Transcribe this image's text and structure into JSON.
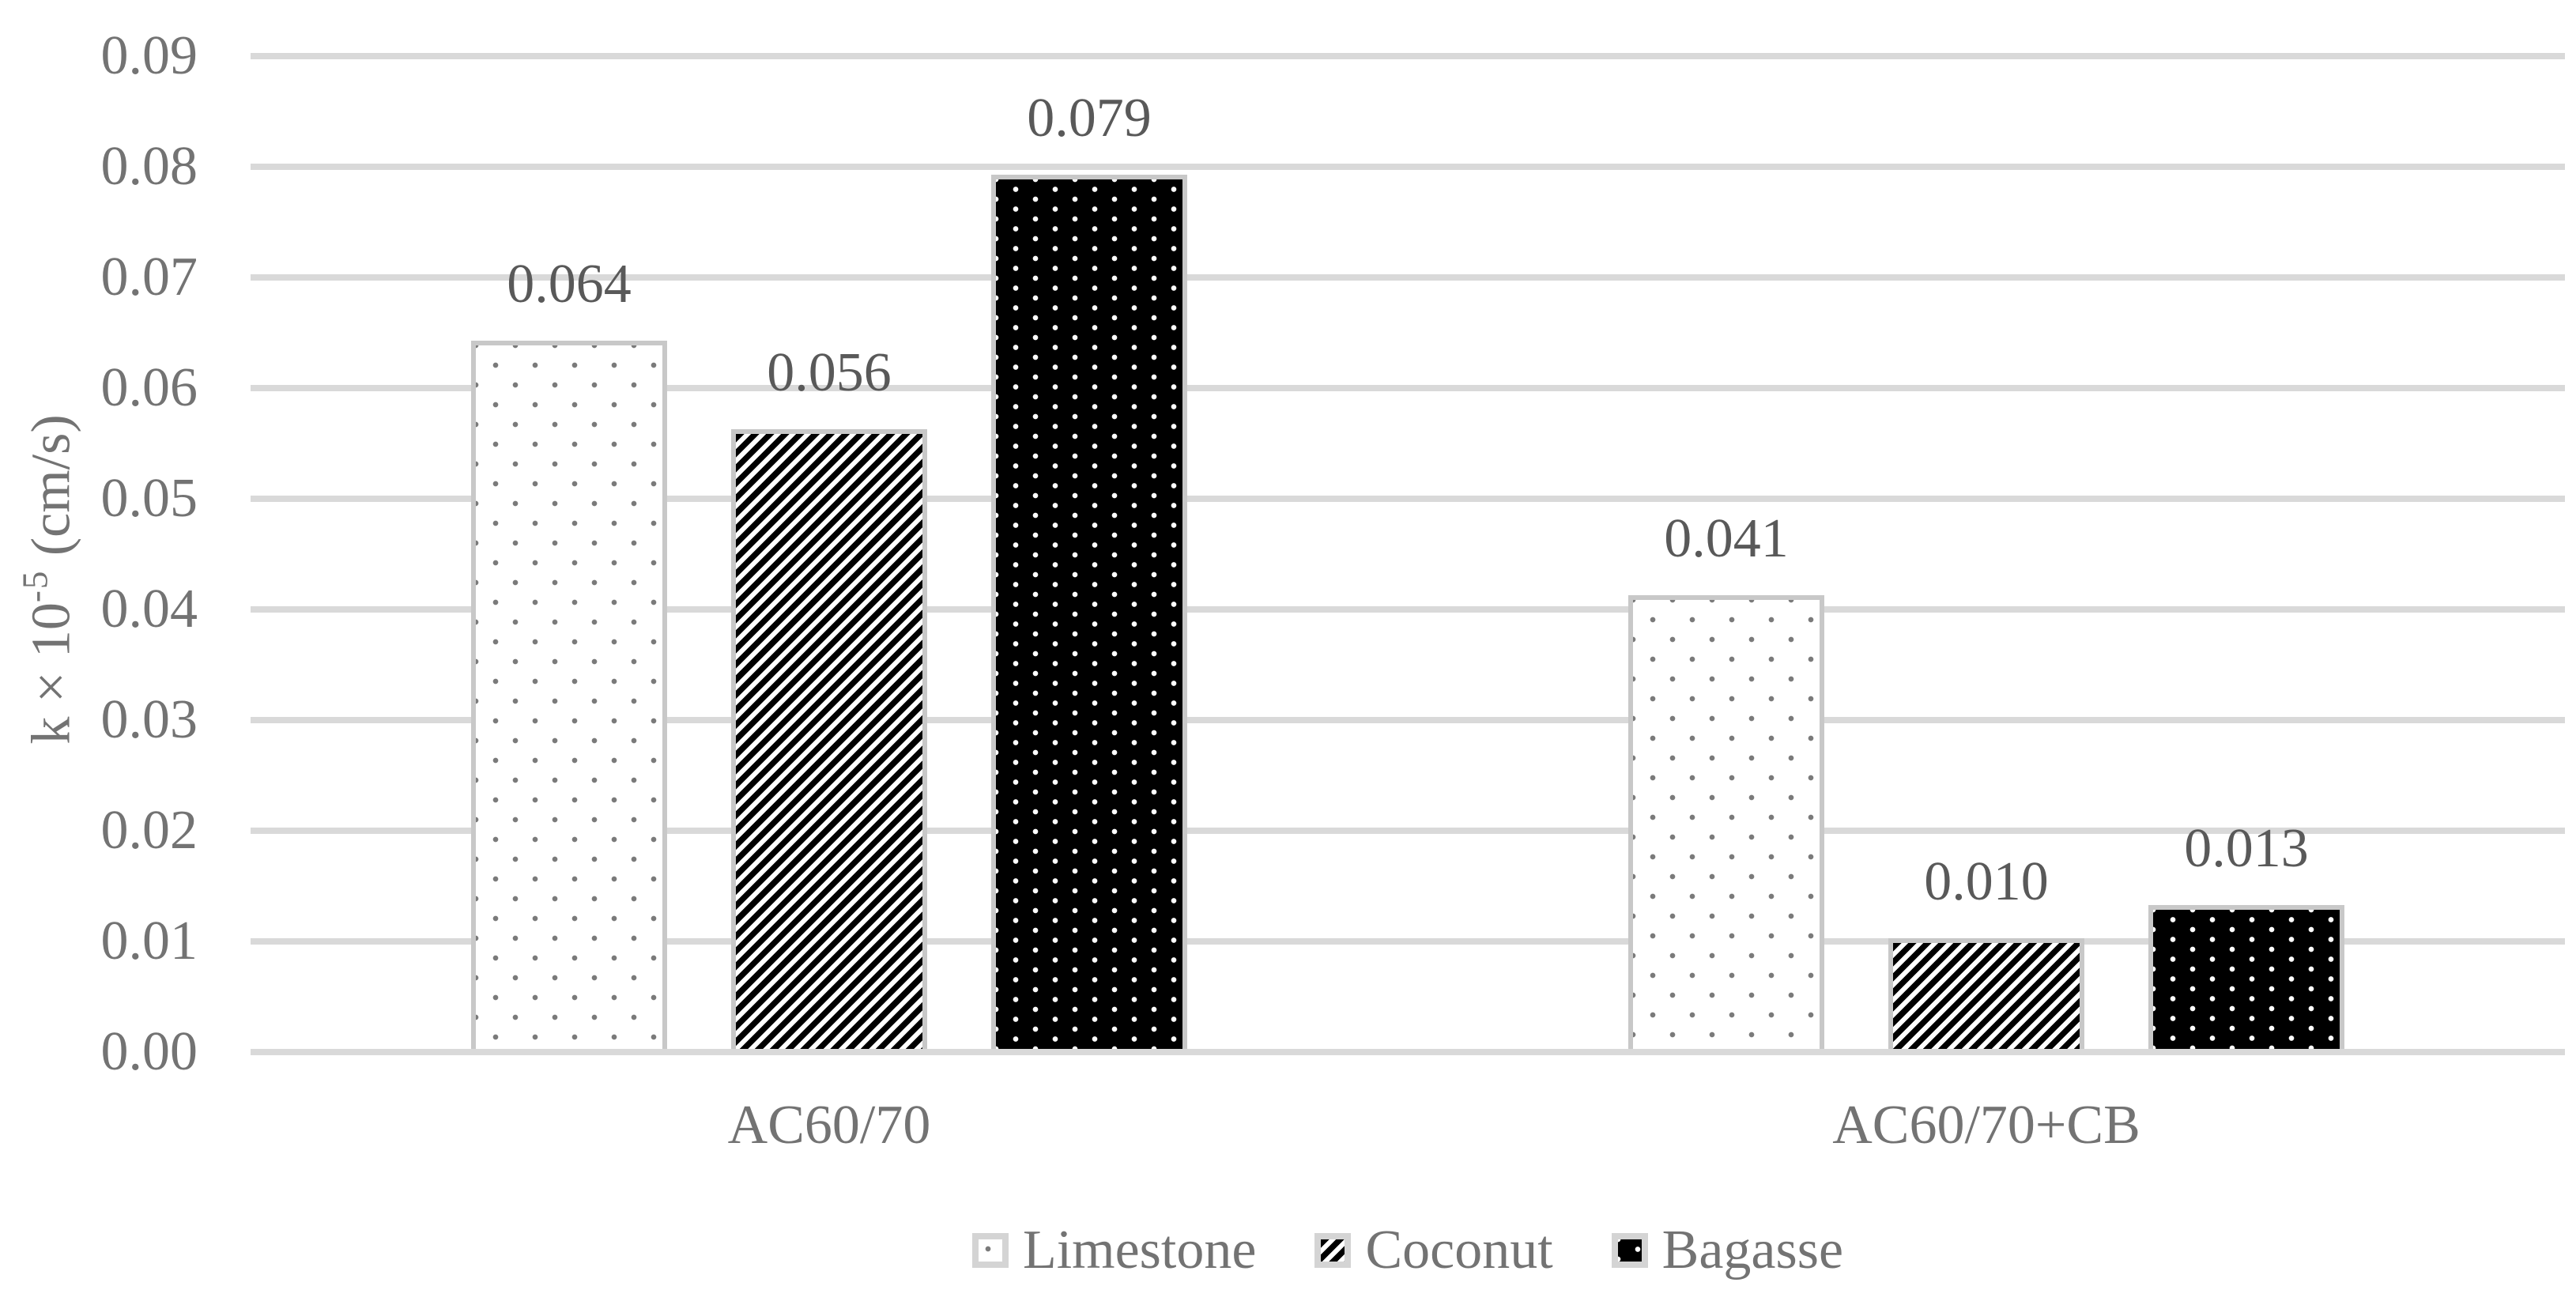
{
  "figure": {
    "background": "#ffffff"
  },
  "chart_data": {
    "type": "bar",
    "title": "",
    "xlabel": "",
    "ylabel": "k × 10⁻⁵ (cm/s)",
    "ylabel_parts": {
      "base": "k × 10",
      "superscript": "-5",
      "unit": " (cm/s)"
    },
    "categories": [
      "AC60/70",
      "AC60/70+CB"
    ],
    "series": [
      {
        "name": "Limestone",
        "pattern": "gray-dots-on-white",
        "values": [
          0.064,
          0.041
        ],
        "value_labels": [
          "0.064",
          "0.041"
        ]
      },
      {
        "name": "Coconut",
        "pattern": "black-diagonal-stripes",
        "values": [
          0.056,
          0.01
        ],
        "value_labels": [
          "0.056",
          "0.010"
        ]
      },
      {
        "name": "Bagasse",
        "pattern": "white-dots-on-black",
        "values": [
          0.079,
          0.013
        ],
        "value_labels": [
          "0.079",
          "0.013"
        ]
      }
    ],
    "ylim": [
      0,
      0.09
    ],
    "ytick_step": 0.01,
    "yticks": [
      "0.00",
      "0.01",
      "0.02",
      "0.03",
      "0.04",
      "0.05",
      "0.06",
      "0.07",
      "0.08",
      "0.09"
    ],
    "grid": true,
    "axis_lines": false,
    "legend_position": "bottom",
    "colors": {
      "gridline": "#d9d9d9",
      "bar_border": "#c8c8c8",
      "tick_text": "#737373",
      "data_label_text": "#595959",
      "pattern_gray": "#7a7a7a",
      "pattern_black": "#000000",
      "pattern_white": "#ffffff"
    }
  }
}
